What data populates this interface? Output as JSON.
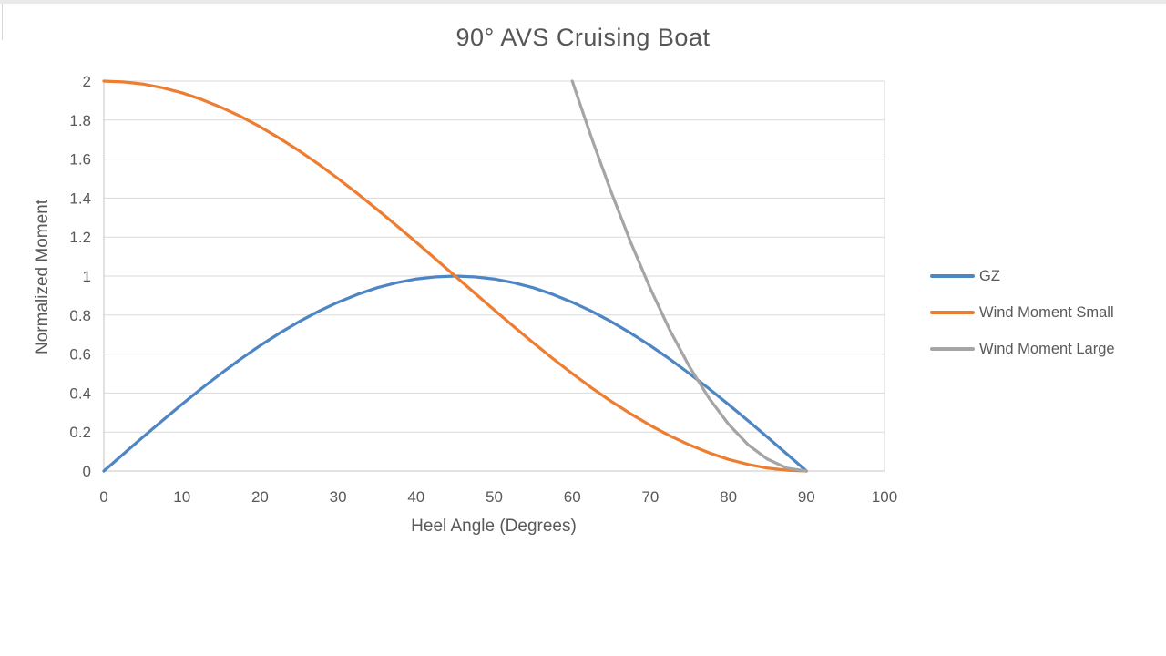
{
  "page": {
    "background": "#FFFFFF",
    "top_border_color": "#E9E9E9"
  },
  "styles": {
    "title_color": "#565656",
    "axis_title_color": "#595959",
    "tick_label_color": "#595959",
    "legend_label_color": "#595959",
    "gridline_color": "#D9D9D9",
    "axis_line_color": "#C6C6C6"
  },
  "chart_data": {
    "type": "line",
    "title": "90° AVS Cruising Boat",
    "xlabel": "Heel Angle (Degrees)",
    "ylabel": "Normalized Moment",
    "xlim": [
      0,
      100
    ],
    "ylim": [
      0,
      2
    ],
    "x_ticks": [
      0,
      10,
      20,
      30,
      40,
      50,
      60,
      70,
      80,
      90,
      100
    ],
    "y_ticks": [
      0,
      0.2,
      0.4,
      0.6,
      0.8,
      1,
      1.2,
      1.4,
      1.6,
      1.8,
      2
    ],
    "grid": "horizontal",
    "legend_position": "right",
    "series": [
      {
        "name": "GZ",
        "color": "#4E86C4",
        "x": [
          0,
          2.5,
          5,
          7.5,
          10,
          12.5,
          15,
          17.5,
          20,
          22.5,
          25,
          27.5,
          30,
          32.5,
          35,
          37.5,
          40,
          42.5,
          45,
          47.5,
          50,
          52.5,
          55,
          57.5,
          60,
          62.5,
          65,
          67.5,
          70,
          72.5,
          75,
          77.5,
          80,
          82.5,
          85,
          87.5,
          90
        ],
        "y": [
          0,
          0.087,
          0.174,
          0.259,
          0.342,
          0.423,
          0.5,
          0.574,
          0.643,
          0.707,
          0.766,
          0.819,
          0.866,
          0.906,
          0.94,
          0.966,
          0.985,
          0.996,
          1,
          0.996,
          0.985,
          0.966,
          0.94,
          0.906,
          0.866,
          0.819,
          0.766,
          0.707,
          0.643,
          0.574,
          0.5,
          0.423,
          0.342,
          0.259,
          0.174,
          0.087,
          0
        ]
      },
      {
        "name": "Wind Moment Small",
        "color": "#ED7D31",
        "x": [
          0,
          2.5,
          5,
          7.5,
          10,
          12.5,
          15,
          17.5,
          20,
          22.5,
          25,
          27.5,
          30,
          32.5,
          35,
          37.5,
          40,
          42.5,
          45,
          47.5,
          50,
          52.5,
          55,
          57.5,
          60,
          62.5,
          65,
          67.5,
          70,
          72.5,
          75,
          77.5,
          80,
          82.5,
          85,
          87.5,
          90
        ],
        "y": [
          2,
          1.996,
          1.985,
          1.966,
          1.94,
          1.906,
          1.866,
          1.819,
          1.766,
          1.707,
          1.643,
          1.574,
          1.5,
          1.423,
          1.342,
          1.259,
          1.174,
          1.087,
          1,
          0.913,
          0.826,
          0.741,
          0.658,
          0.577,
          0.5,
          0.426,
          0.357,
          0.293,
          0.234,
          0.181,
          0.134,
          0.094,
          0.06,
          0.034,
          0.015,
          0.004,
          0
        ]
      },
      {
        "name": "Wind Moment Large",
        "color": "#A5A5A5",
        "x": [
          60,
          62.5,
          65,
          67.5,
          70,
          72.5,
          75,
          77.5,
          80,
          82.5,
          85,
          87.5,
          90
        ],
        "y": [
          2,
          1.706,
          1.429,
          1.172,
          0.936,
          0.723,
          0.536,
          0.375,
          0.241,
          0.136,
          0.061,
          0.015,
          0
        ]
      }
    ]
  }
}
